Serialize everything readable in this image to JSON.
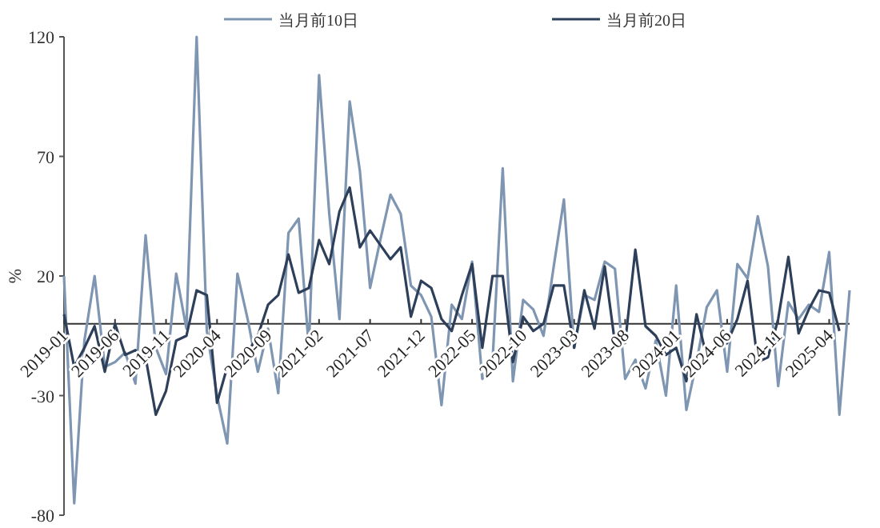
{
  "chart_data": {
    "type": "line",
    "ylabel": "%",
    "legend": "top",
    "grid": false,
    "categories": [
      "2019-01",
      null,
      null,
      null,
      null,
      "2019-06",
      null,
      null,
      null,
      null,
      "2019-11",
      null,
      null,
      null,
      null,
      "2020-04",
      null,
      null,
      null,
      null,
      "2020-09",
      null,
      null,
      null,
      null,
      "2021-02",
      null,
      null,
      null,
      null,
      "2021-07",
      null,
      null,
      null,
      null,
      "2021-12",
      null,
      null,
      null,
      null,
      "2022-05",
      null,
      null,
      null,
      null,
      "2022-10",
      null,
      null,
      null,
      null,
      "2023-03",
      null,
      null,
      null,
      null,
      "2023-08",
      null,
      null,
      null,
      null,
      "2024-01",
      null,
      null,
      null,
      null,
      "2024-06",
      null,
      null,
      null,
      null,
      "2024-11",
      null,
      null,
      null,
      null,
      "2025-04",
      null,
      null
    ],
    "ylim": [
      -80,
      120
    ],
    "yticks": [
      -80,
      -30,
      20,
      70,
      120
    ],
    "series": [
      {
        "name": "当月前10日",
        "color": "#7f96b2",
        "values": [
          20,
          -75,
          -7,
          20,
          -18,
          -16,
          -12,
          -25,
          37,
          -10,
          -21,
          21,
          -2,
          120,
          -3,
          -30,
          -50,
          21,
          2,
          -20,
          -2,
          -29,
          38,
          44,
          -10,
          104,
          46,
          2,
          93,
          64,
          15,
          35,
          54,
          46,
          16,
          12,
          3,
          -34,
          8,
          2,
          26,
          -23,
          -16,
          65,
          -24,
          10,
          6,
          -5,
          24,
          52,
          -10,
          12,
          10,
          26,
          23,
          -23,
          -15,
          -27,
          -7,
          -30,
          16,
          -36,
          -16,
          7,
          14,
          -20,
          25,
          19,
          45,
          24,
          -26,
          9,
          2,
          8,
          5,
          30,
          -38,
          14
        ]
      },
      {
        "name": "当月前20日",
        "color": "#2e3f5a",
        "values": [
          4,
          -18,
          -10,
          -1,
          -20,
          0,
          -13,
          -11,
          -14,
          -38,
          -28,
          -7,
          -5,
          14,
          12,
          -33,
          -18,
          -14,
          -12,
          -5,
          8,
          12,
          29,
          13,
          15,
          35,
          25,
          47,
          57,
          32,
          39,
          33,
          27,
          32,
          3,
          18,
          15,
          2,
          -3,
          12,
          25,
          -10,
          20,
          20,
          -16,
          3,
          -3,
          0,
          16,
          16,
          -10,
          14,
          -2,
          24,
          -8,
          -8,
          31,
          -1,
          -5,
          -13,
          -10,
          -24,
          4,
          -14,
          -10,
          -8,
          2,
          18,
          -16,
          -14,
          2,
          28,
          -4,
          6,
          14,
          13,
          -3,
          null
        ]
      }
    ]
  }
}
